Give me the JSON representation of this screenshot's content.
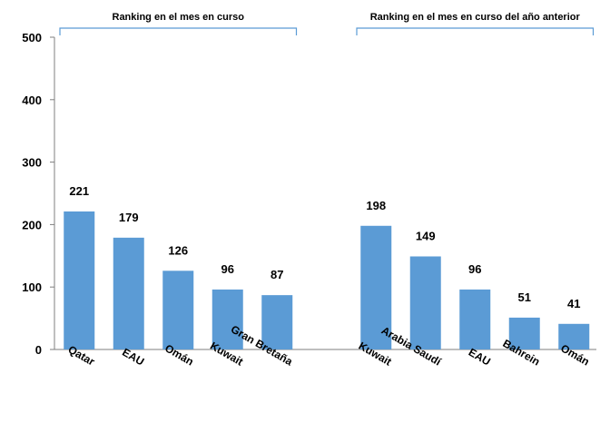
{
  "chart_data": {
    "type": "bar",
    "ylim": [
      0,
      500
    ],
    "yticks": [
      0,
      100,
      200,
      300,
      400,
      500
    ],
    "grid": false,
    "bar_color": "#5B9BD5",
    "bracket_color": "#5B9BD5",
    "groups": [
      {
        "label": "Ranking en el mes en curso",
        "categories": [
          "Qatar",
          "EAU",
          "Omán",
          "Kuwait",
          "Gran Bretaña"
        ],
        "values": [
          221,
          179,
          126,
          96,
          87
        ]
      },
      {
        "label": "Ranking en el mes en curso del año anterior",
        "categories": [
          "Kuwait",
          "Arabia Saudí",
          "EAU",
          "Bahrein",
          "Omán"
        ],
        "values": [
          198,
          149,
          96,
          51,
          41
        ]
      }
    ]
  }
}
